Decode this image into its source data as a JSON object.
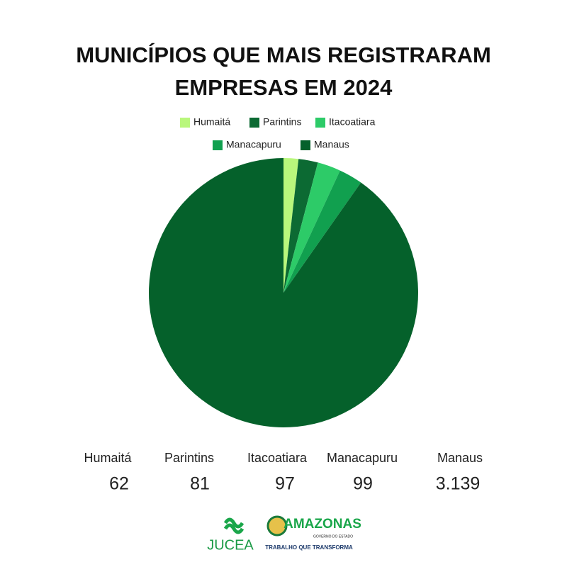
{
  "chart_data": {
    "type": "pie",
    "title": "MUNICÍPIOS QUE MAIS REGISTRARAM EMPRESAS EM 2024",
    "categories": [
      "Humaitá",
      "Parintins",
      "Itacoatiara",
      "Manacapuru",
      "Manaus"
    ],
    "values": [
      62,
      81,
      97,
      99,
      3139
    ],
    "value_labels": [
      "62",
      "81",
      "97",
      "99",
      "3.139"
    ],
    "colors": [
      "#b9f77c",
      "#0c6a33",
      "#2dcb68",
      "#11a04f",
      "#05612b"
    ],
    "legend": "top"
  },
  "footer": {
    "logo_left": "JUCEA",
    "logo_right": "AMAZONAS",
    "logo_right_sub": "GOVERNO DO ESTADO",
    "slogan": "TRABALHO QUE TRANSFORMA"
  }
}
